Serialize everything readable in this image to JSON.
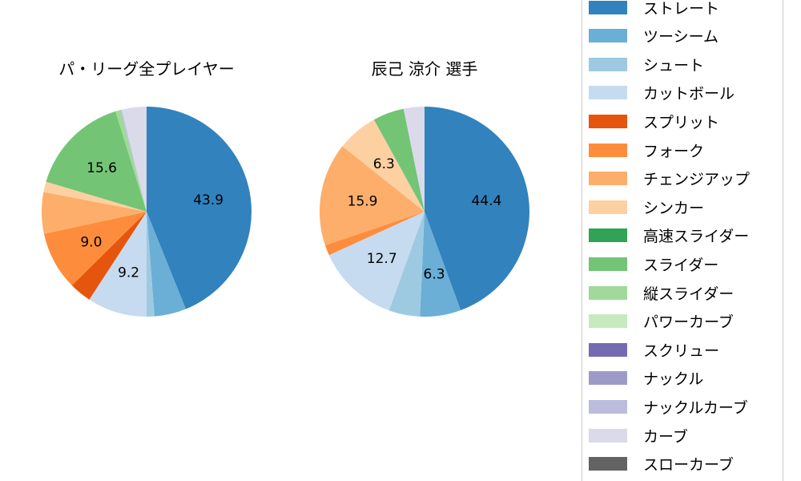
{
  "chart_data": [
    {
      "type": "pie",
      "title": "パ・リーグ全プレイヤー",
      "categories": [
        "ストレート",
        "ツーシーム",
        "シュート",
        "カットボール",
        "スプリット",
        "フォーク",
        "チェンジアップ",
        "シンカー",
        "スライダー",
        "縦スライダー",
        "ナックルカーブ",
        "カーブ"
      ],
      "values": [
        43.9,
        4.9,
        1.2,
        9.2,
        3.4,
        9.0,
        6.4,
        1.6,
        15.6,
        0.8,
        0.2,
        3.8
      ],
      "labels_shown": [
        "43.9",
        "9.2",
        "9.0",
        "15.6"
      ],
      "start_angle": "top, clockwise"
    },
    {
      "type": "pie",
      "title": "辰己 涼介  選手",
      "categories": [
        "ストレート",
        "ツーシーム",
        "シュート",
        "カットボール",
        "フォーク",
        "チェンジアップ",
        "シンカー",
        "スライダー",
        "カーブ"
      ],
      "values": [
        44.4,
        6.3,
        4.8,
        12.7,
        1.6,
        15.9,
        6.3,
        4.8,
        3.2
      ],
      "labels_shown": [
        "44.4",
        "6.3",
        "12.7",
        "15.9",
        "6.3"
      ],
      "start_angle": "top, clockwise"
    }
  ],
  "colors": {
    "ストレート": "#3182bd",
    "ツーシーム": "#6baed6",
    "シュート": "#9ecae1",
    "カットボール": "#c6dbef",
    "スプリット": "#e6550d",
    "フォーク": "#fd8d3c",
    "チェンジアップ": "#fdae6b",
    "シンカー": "#fdd0a2",
    "高速スライダー": "#31a354",
    "スライダー": "#74c476",
    "縦スライダー": "#a1d99b",
    "パワーカーブ": "#c7e9c0",
    "スクリュー": "#756bb1",
    "ナックル": "#9e9ac8",
    "ナックルカーブ": "#bcbddc",
    "カーブ": "#dadaeb",
    "スローカーブ": "#636363"
  },
  "legend": {
    "items": [
      {
        "label": "ストレート",
        "color": "#3182bd"
      },
      {
        "label": "ツーシーム",
        "color": "#6baed6"
      },
      {
        "label": "シュート",
        "color": "#9ecae1"
      },
      {
        "label": "カットボール",
        "color": "#c6dbef"
      },
      {
        "label": "スプリット",
        "color": "#e6550d"
      },
      {
        "label": "フォーク",
        "color": "#fd8d3c"
      },
      {
        "label": "チェンジアップ",
        "color": "#fdae6b"
      },
      {
        "label": "シンカー",
        "color": "#fdd0a2"
      },
      {
        "label": "高速スライダー",
        "color": "#31a354"
      },
      {
        "label": "スライダー",
        "color": "#74c476"
      },
      {
        "label": "縦スライダー",
        "color": "#a1d99b"
      },
      {
        "label": "パワーカーブ",
        "color": "#c7e9c0"
      },
      {
        "label": "スクリュー",
        "color": "#756bb1"
      },
      {
        "label": "ナックル",
        "color": "#9e9ac8"
      },
      {
        "label": "ナックルカーブ",
        "color": "#bcbddc"
      },
      {
        "label": "カーブ",
        "color": "#dadaeb"
      },
      {
        "label": "スローカーブ",
        "color": "#636363"
      }
    ]
  }
}
